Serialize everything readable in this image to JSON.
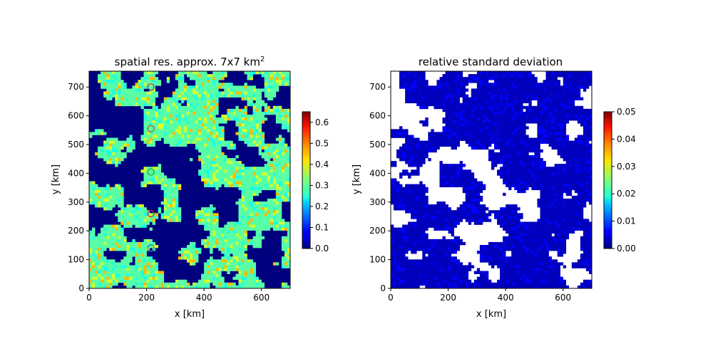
{
  "chart_data": [
    {
      "type": "heatmap",
      "title": "spatial res. approx. 7x7 km",
      "title_superscript": "2",
      "xlabel": "x [km]",
      "ylabel": "y [km]",
      "xlim": [
        0,
        700
      ],
      "ylim": [
        0,
        755
      ],
      "xticks": [
        0,
        200,
        400,
        600
      ],
      "yticks": [
        0,
        100,
        200,
        300,
        400,
        500,
        600,
        700
      ],
      "colormap": "jet",
      "background_value_color": "#00007f",
      "colorbar": {
        "min": 0.0,
        "max": 0.65,
        "ticks": [
          "0.0",
          "0.1",
          "0.2",
          "0.3",
          "0.4",
          "0.5",
          "0.6"
        ]
      },
      "dominant_value": 0.3,
      "markers": [
        {
          "x": 215,
          "y": 700,
          "color": "#6a3d9a"
        },
        {
          "x": 215,
          "y": 555,
          "color": "#b05a2a"
        },
        {
          "x": 215,
          "y": 405,
          "color": "#2ca02c"
        },
        {
          "x": 215,
          "y": 260,
          "color": "#d62728"
        },
        {
          "x": 215,
          "y": 140,
          "color": "#1f77b4"
        }
      ],
      "grid": false
    },
    {
      "type": "heatmap",
      "title": "relative standard deviation",
      "xlabel": "x [km]",
      "ylabel": "y [km]",
      "xlim": [
        0,
        700
      ],
      "ylim": [
        0,
        755
      ],
      "xticks": [
        0,
        200,
        400,
        600
      ],
      "yticks": [
        0,
        100,
        200,
        300,
        400,
        500,
        600,
        700
      ],
      "colormap": "jet",
      "missing_color": "#ffffff",
      "colorbar": {
        "min": 0.0,
        "max": 0.05,
        "ticks": [
          "0.00",
          "0.01",
          "0.02",
          "0.03",
          "0.04",
          "0.05"
        ]
      },
      "dominant_value": 0.003,
      "grid": false
    }
  ]
}
